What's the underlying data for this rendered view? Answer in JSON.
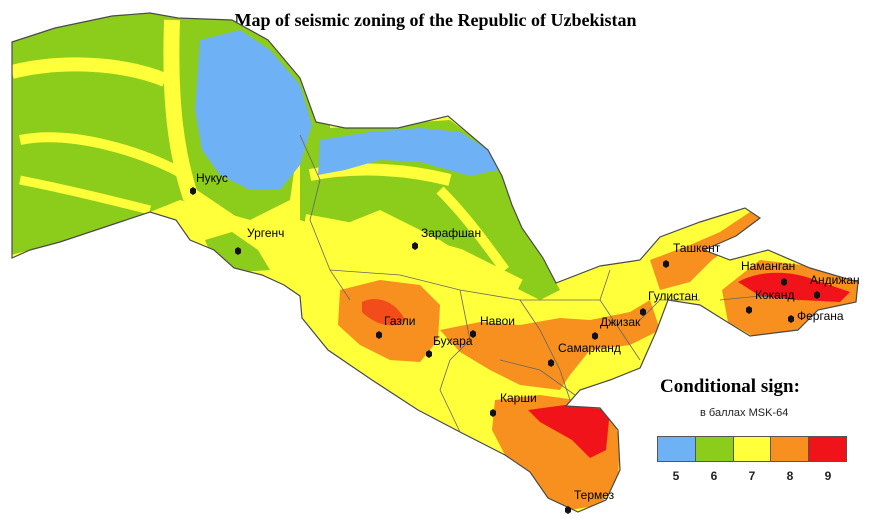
{
  "title": "Map of seismic zoning of the Republic of Uzbekistan",
  "legend": {
    "title": "Conditional sign:",
    "subtitle": "в баллах MSK-64",
    "classes": [
      {
        "label": "5",
        "color": "#6fb1f5"
      },
      {
        "label": "6",
        "color": "#8ccc1a"
      },
      {
        "label": "7",
        "color": "#ffff3a"
      },
      {
        "label": "8",
        "color": "#f7901e"
      },
      {
        "label": "9",
        "color": "#f0141a"
      }
    ]
  },
  "cities": [
    {
      "key": "nukus",
      "name": "Нукус"
    },
    {
      "key": "urgench",
      "name": "Ургенч"
    },
    {
      "key": "zarafshan",
      "name": "Зарафшан"
    },
    {
      "key": "gazli",
      "name": "Газли"
    },
    {
      "key": "navoi",
      "name": "Навои"
    },
    {
      "key": "bukhara",
      "name": "Бухара"
    },
    {
      "key": "samarkand",
      "name": "Самарканд"
    },
    {
      "key": "jizzakh",
      "name": "Джизак"
    },
    {
      "key": "gulistan",
      "name": "Гулистан"
    },
    {
      "key": "tashkent",
      "name": "Ташкент"
    },
    {
      "key": "namangan",
      "name": "Наманган"
    },
    {
      "key": "andijan",
      "name": "Андижан"
    },
    {
      "key": "kokand",
      "name": "Коканд"
    },
    {
      "key": "fergana",
      "name": "Фергана"
    },
    {
      "key": "karshi",
      "name": "Карши"
    },
    {
      "key": "termez",
      "name": "Термез"
    }
  ]
}
